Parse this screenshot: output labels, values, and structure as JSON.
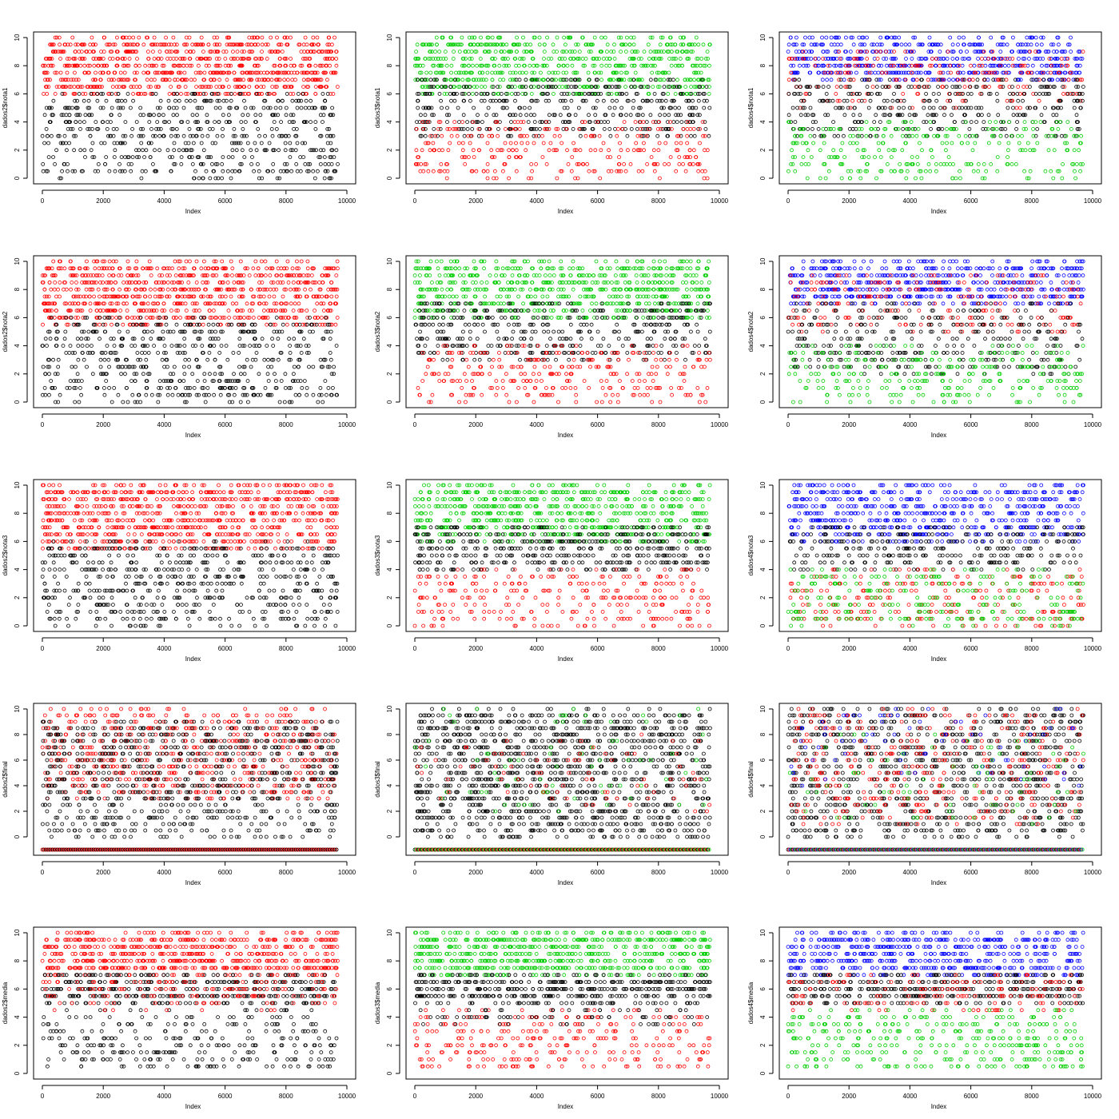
{
  "chart_data": [
    {
      "type": "scatter",
      "row": 0,
      "col": 0,
      "ylabel": "dados2$nota1",
      "xlabel": "Index",
      "xlim": [
        0,
        10000
      ],
      "ylim": [
        0,
        10
      ],
      "xticks": [
        "0",
        "2000",
        "4000",
        "6000",
        "8000",
        "10000"
      ],
      "yticks": [
        "0",
        "2",
        "4",
        "6",
        "8",
        "10"
      ],
      "colors": [
        "#FF0000",
        "#000000"
      ],
      "pattern": "high-low",
      "n": 9700,
      "series": [
        {
          "color": "#FF0000",
          "range": [
            6,
            10
          ],
          "fraction": 0.6
        },
        {
          "color": "#000000",
          "range": [
            0,
            6
          ],
          "fraction": 0.4
        }
      ]
    },
    {
      "type": "scatter",
      "row": 0,
      "col": 1,
      "ylabel": "dados3$nota1",
      "xlabel": "Index",
      "xlim": [
        0,
        10000
      ],
      "ylim": [
        0,
        10
      ],
      "xticks": [
        "0",
        "2000",
        "4000",
        "6000",
        "8000",
        "10000"
      ],
      "yticks": [
        "0",
        "2",
        "4",
        "6",
        "8",
        "10"
      ],
      "colors": [
        "#00CD00",
        "#000000",
        "#FF0000"
      ],
      "pattern": "three-class",
      "n": 9700,
      "series": [
        {
          "color": "#00CD00",
          "range": [
            6,
            10
          ],
          "fraction": 0.5
        },
        {
          "color": "#000000",
          "range": [
            3,
            7
          ],
          "fraction": 0.3
        },
        {
          "color": "#FF0000",
          "range": [
            0,
            4
          ],
          "fraction": 0.2
        }
      ]
    },
    {
      "type": "scatter",
      "row": 0,
      "col": 2,
      "ylabel": "dados4$nota1",
      "xlabel": "Index",
      "xlim": [
        0,
        10000
      ],
      "ylim": [
        0,
        10
      ],
      "xticks": [
        "0",
        "2000",
        "4000",
        "6000",
        "8000",
        "10000"
      ],
      "yticks": [
        "0",
        "2",
        "4",
        "6",
        "8",
        "10"
      ],
      "colors": [
        "#0000FF",
        "#FF0000",
        "#000000",
        "#00CD00"
      ],
      "pattern": "four-class",
      "n": 9700,
      "series": [
        {
          "color": "#0000FF",
          "range": [
            7,
            10
          ],
          "fraction": 0.4
        },
        {
          "color": "#FF0000",
          "range": [
            5,
            9
          ],
          "fraction": 0.15
        },
        {
          "color": "#000000",
          "range": [
            3,
            7
          ],
          "fraction": 0.25
        },
        {
          "color": "#00CD00",
          "range": [
            0,
            4
          ],
          "fraction": 0.2
        }
      ]
    },
    {
      "type": "scatter",
      "row": 1,
      "col": 0,
      "ylabel": "dados2$nota2",
      "xlabel": "Index",
      "xlim": [
        0,
        10000
      ],
      "ylim": [
        0,
        10
      ],
      "xticks": [
        "0",
        "2000",
        "4000",
        "6000",
        "8000",
        "10000"
      ],
      "yticks": [
        "0",
        "2",
        "4",
        "6",
        "8",
        "10"
      ],
      "colors": [
        "#FF0000",
        "#000000"
      ],
      "pattern": "high-low",
      "n": 9700,
      "series": [
        {
          "color": "#FF0000",
          "range": [
            5.5,
            10
          ],
          "fraction": 0.6
        },
        {
          "color": "#000000",
          "range": [
            0,
            6
          ],
          "fraction": 0.4
        }
      ]
    },
    {
      "type": "scatter",
      "row": 1,
      "col": 1,
      "ylabel": "dados3$nota2",
      "xlabel": "Index",
      "xlim": [
        0,
        10000
      ],
      "ylim": [
        0,
        10
      ],
      "xticks": [
        "0",
        "2000",
        "4000",
        "6000",
        "8000",
        "10000"
      ],
      "yticks": [
        "0",
        "2",
        "4",
        "6",
        "8",
        "10"
      ],
      "colors": [
        "#00CD00",
        "#000000",
        "#FF0000"
      ],
      "pattern": "three-class",
      "n": 9700,
      "series": [
        {
          "color": "#00CD00",
          "range": [
            6,
            10
          ],
          "fraction": 0.5
        },
        {
          "color": "#000000",
          "range": [
            3,
            7
          ],
          "fraction": 0.3
        },
        {
          "color": "#FF0000",
          "range": [
            0,
            4
          ],
          "fraction": 0.2
        }
      ]
    },
    {
      "type": "scatter",
      "row": 1,
      "col": 2,
      "ylabel": "dados4$nota2",
      "xlabel": "Index",
      "xlim": [
        0,
        10000
      ],
      "ylim": [
        0,
        10
      ],
      "xticks": [
        "0",
        "2000",
        "4000",
        "6000",
        "8000",
        "10000"
      ],
      "yticks": [
        "0",
        "2",
        "4",
        "6",
        "8",
        "10"
      ],
      "colors": [
        "#0000FF",
        "#FF0000",
        "#000000",
        "#00CD00"
      ],
      "pattern": "four-class",
      "n": 9700,
      "series": [
        {
          "color": "#0000FF",
          "range": [
            7,
            10
          ],
          "fraction": 0.4
        },
        {
          "color": "#FF0000",
          "range": [
            5,
            9
          ],
          "fraction": 0.15
        },
        {
          "color": "#000000",
          "range": [
            2,
            7
          ],
          "fraction": 0.25
        },
        {
          "color": "#00CD00",
          "range": [
            0,
            4
          ],
          "fraction": 0.2
        }
      ]
    },
    {
      "type": "scatter",
      "row": 2,
      "col": 0,
      "ylabel": "dados2$nota3",
      "xlabel": "Index",
      "xlim": [
        0,
        10000
      ],
      "ylim": [
        0,
        10
      ],
      "xticks": [
        "0",
        "2000",
        "4000",
        "6000",
        "8000",
        "10000"
      ],
      "yticks": [
        "0",
        "2",
        "4",
        "6",
        "8",
        "10"
      ],
      "colors": [
        "#FF0000",
        "#000000"
      ],
      "pattern": "high-low",
      "n": 9700,
      "series": [
        {
          "color": "#FF0000",
          "range": [
            5.5,
            10
          ],
          "fraction": 0.6
        },
        {
          "color": "#000000",
          "range": [
            0,
            6
          ],
          "fraction": 0.4
        }
      ]
    },
    {
      "type": "scatter",
      "row": 2,
      "col": 1,
      "ylabel": "dados3$nota3",
      "xlabel": "Index",
      "xlim": [
        0,
        10000
      ],
      "ylim": [
        0,
        10
      ],
      "xticks": [
        "0",
        "2000",
        "4000",
        "6000",
        "8000",
        "10000"
      ],
      "yticks": [
        "0",
        "2",
        "4",
        "6",
        "8",
        "10"
      ],
      "colors": [
        "#00CD00",
        "#000000",
        "#FF0000"
      ],
      "pattern": "three-class",
      "n": 9700,
      "series": [
        {
          "color": "#00CD00",
          "range": [
            6,
            10
          ],
          "fraction": 0.5
        },
        {
          "color": "#000000",
          "range": [
            4,
            7
          ],
          "fraction": 0.3
        },
        {
          "color": "#FF0000",
          "range": [
            0,
            4
          ],
          "fraction": 0.2
        }
      ]
    },
    {
      "type": "scatter",
      "row": 2,
      "col": 2,
      "ylabel": "dados4$nota3",
      "xlabel": "Index",
      "xlim": [
        0,
        10000
      ],
      "ylim": [
        0,
        10
      ],
      "xticks": [
        "0",
        "2000",
        "4000",
        "6000",
        "8000",
        "10000"
      ],
      "yticks": [
        "0",
        "2",
        "4",
        "6",
        "8",
        "10"
      ],
      "colors": [
        "#0000FF",
        "#000000",
        "#FF0000",
        "#00CD00"
      ],
      "pattern": "four-class",
      "n": 9700,
      "series": [
        {
          "color": "#0000FF",
          "range": [
            6,
            10
          ],
          "fraction": 0.45
        },
        {
          "color": "#000000",
          "range": [
            4,
            7
          ],
          "fraction": 0.2
        },
        {
          "color": "#FF0000",
          "range": [
            0,
            4
          ],
          "fraction": 0.17
        },
        {
          "color": "#00CD00",
          "range": [
            0,
            4
          ],
          "fraction": 0.18
        }
      ]
    },
    {
      "type": "scatter",
      "row": 3,
      "col": 0,
      "ylabel": "dados2$final",
      "xlabel": "Index",
      "xlim": [
        0,
        10000
      ],
      "ylim": [
        -1,
        10
      ],
      "xticks": [
        "0",
        "2000",
        "4000",
        "6000",
        "8000",
        "10000"
      ],
      "yticks": [
        "0",
        "2",
        "4",
        "6",
        "8",
        "10"
      ],
      "colors": [
        "#FF0000",
        "#000000"
      ],
      "pattern": "final",
      "n": 9700,
      "baseline": -1,
      "series": [
        {
          "color": "#FF0000",
          "range": [
            3,
            10
          ],
          "fraction": 0.45
        },
        {
          "color": "#000000",
          "range": [
            0,
            9
          ],
          "fraction": 0.55
        }
      ]
    },
    {
      "type": "scatter",
      "row": 3,
      "col": 1,
      "ylabel": "dados3$final",
      "xlabel": "Index",
      "xlim": [
        0,
        10000
      ],
      "ylim": [
        -1,
        10
      ],
      "xticks": [
        "0",
        "2000",
        "4000",
        "6000",
        "8000",
        "10000"
      ],
      "yticks": [
        "0",
        "2",
        "4",
        "6",
        "8",
        "10"
      ],
      "colors": [
        "#000000",
        "#00CD00",
        "#FF0000"
      ],
      "pattern": "final",
      "n": 9700,
      "baseline": -1,
      "series": [
        {
          "color": "#000000",
          "range": [
            0,
            10
          ],
          "fraction": 0.9
        },
        {
          "color": "#00CD00",
          "range": [
            2,
            10
          ],
          "fraction": 0.05
        },
        {
          "color": "#FF0000",
          "range": [
            2,
            8
          ],
          "fraction": 0.05
        }
      ]
    },
    {
      "type": "scatter",
      "row": 3,
      "col": 2,
      "ylabel": "dados4$final",
      "xlabel": "Index",
      "xlim": [
        0,
        10000
      ],
      "ylim": [
        -1,
        10
      ],
      "xticks": [
        "0",
        "2000",
        "4000",
        "6000",
        "8000",
        "10000"
      ],
      "yticks": [
        "0",
        "2",
        "4",
        "6",
        "8",
        "10"
      ],
      "colors": [
        "#000000",
        "#FF0000",
        "#0000FF",
        "#00CD00"
      ],
      "pattern": "final",
      "n": 9700,
      "baseline": -1,
      "series": [
        {
          "color": "#000000",
          "range": [
            0,
            10
          ],
          "fraction": 0.65
        },
        {
          "color": "#FF0000",
          "range": [
            1,
            10
          ],
          "fraction": 0.25
        },
        {
          "color": "#0000FF",
          "range": [
            4,
            10
          ],
          "fraction": 0.05
        },
        {
          "color": "#00CD00",
          "range": [
            1,
            8
          ],
          "fraction": 0.05
        }
      ]
    },
    {
      "type": "scatter",
      "row": 4,
      "col": 0,
      "ylabel": "dados2$media",
      "xlabel": "Index",
      "xlim": [
        0,
        10000
      ],
      "ylim": [
        0,
        10
      ],
      "xticks": [
        "0",
        "2000",
        "4000",
        "6000",
        "8000",
        "10000"
      ],
      "yticks": [
        "0",
        "2",
        "4",
        "6",
        "8",
        "10"
      ],
      "colors": [
        "#FF0000",
        "#000000"
      ],
      "pattern": "media",
      "n": 9700,
      "series": [
        {
          "color": "#FF0000",
          "range": [
            7,
            10
          ],
          "fraction": 0.45
        },
        {
          "color": "#000000",
          "range": [
            5,
            7
          ],
          "fraction": 0.25
        },
        {
          "color": "#000000",
          "range": [
            0.3,
            4.5
          ],
          "fraction": 0.2
        },
        {
          "color": "#FF0000",
          "range": [
            4.5,
            6.8
          ],
          "fraction": 0.1
        }
      ]
    },
    {
      "type": "scatter",
      "row": 4,
      "col": 1,
      "ylabel": "dados3$media",
      "xlabel": "Index",
      "xlim": [
        0,
        10000
      ],
      "ylim": [
        0,
        10
      ],
      "xticks": [
        "0",
        "2000",
        "4000",
        "6000",
        "8000",
        "10000"
      ],
      "yticks": [
        "0",
        "2",
        "4",
        "6",
        "8",
        "10"
      ],
      "colors": [
        "#00CD00",
        "#000000",
        "#FF0000"
      ],
      "pattern": "media",
      "n": 9700,
      "series": [
        {
          "color": "#00CD00",
          "range": [
            7,
            10
          ],
          "fraction": 0.45
        },
        {
          "color": "#000000",
          "range": [
            5,
            7
          ],
          "fraction": 0.3
        },
        {
          "color": "#FF0000",
          "range": [
            0.3,
            4.5
          ],
          "fraction": 0.2
        },
        {
          "color": "#000000",
          "range": [
            3.5,
            4.5
          ],
          "fraction": 0.05
        }
      ]
    },
    {
      "type": "scatter",
      "row": 4,
      "col": 2,
      "ylabel": "dados4$media",
      "xlabel": "Index",
      "xlim": [
        0,
        10000
      ],
      "ylim": [
        0,
        10
      ],
      "xticks": [
        "0",
        "2000",
        "4000",
        "6000",
        "8000",
        "10000"
      ],
      "yticks": [
        "0",
        "2",
        "4",
        "6",
        "8",
        "10"
      ],
      "colors": [
        "#0000FF",
        "#000000",
        "#FF0000",
        "#00CD00"
      ],
      "pattern": "media",
      "n": 9700,
      "series": [
        {
          "color": "#0000FF",
          "range": [
            7,
            10
          ],
          "fraction": 0.4
        },
        {
          "color": "#000000",
          "range": [
            5,
            7
          ],
          "fraction": 0.25
        },
        {
          "color": "#FF0000",
          "range": [
            4.5,
            7
          ],
          "fraction": 0.1
        },
        {
          "color": "#00CD00",
          "range": [
            0.3,
            4.5
          ],
          "fraction": 0.25
        }
      ]
    }
  ]
}
